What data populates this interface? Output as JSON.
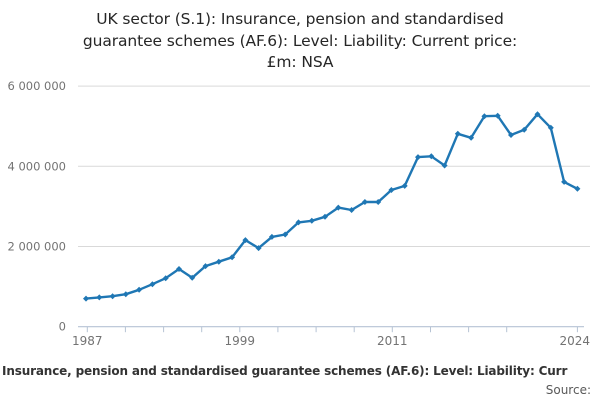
{
  "title": {
    "lines": [
      "UK sector (S.1): Insurance, pension and standardised",
      "guarantee schemes (AF.6): Level: Liability: Current price:",
      "£m: NSA"
    ]
  },
  "caption": "Insurance, pension and standardised guarantee schemes (AF.6): Level: Liability: Curr",
  "source_label": "Source:",
  "colors": {
    "line": "#1f77b4",
    "grid": "#d9d9d9",
    "axis": "#b6c3d4",
    "tick_label": "#737373",
    "title": "#262626",
    "caption": "#333333"
  },
  "chart_data": {
    "type": "line",
    "title": "UK sector (S.1): Insurance, pension and standardised guarantee schemes (AF.6): Level: Liability: Current price: £m: NSA",
    "xlabel": "",
    "ylabel": "",
    "ylim": [
      0,
      6000000
    ],
    "yticks": [
      0,
      2000000,
      4000000,
      6000000
    ],
    "ytick_labels": [
      "0",
      "2 000 000",
      "4 000 000",
      "6 000 000"
    ],
    "xtick_labeled_years": [
      1987,
      1999,
      2011,
      2024
    ],
    "xtick_minor_step_years": 3,
    "grid": "horizontal",
    "legend_position": "none",
    "marker": "diamond",
    "x": [
      1987,
      1988,
      1989,
      1990,
      1991,
      1992,
      1993,
      1994,
      1995,
      1996,
      1997,
      1998,
      1999,
      2000,
      2001,
      2002,
      2003,
      2004,
      2005,
      2006,
      2007,
      2008,
      2009,
      2010,
      2011,
      2012,
      2013,
      2014,
      2015,
      2016,
      2017,
      2018,
      2019,
      2020,
      2021,
      2022,
      2023,
      2024
    ],
    "values": [
      700000,
      730000,
      760000,
      810000,
      920000,
      1060000,
      1210000,
      1440000,
      1220000,
      1510000,
      1620000,
      1730000,
      2160000,
      1960000,
      2240000,
      2300000,
      2600000,
      2640000,
      2740000,
      2970000,
      2910000,
      3110000,
      3110000,
      3410000,
      3510000,
      4230000,
      4250000,
      4020000,
      4810000,
      4710000,
      5250000,
      5260000,
      4780000,
      4910000,
      5300000,
      4960000,
      3610000,
      3440000
    ]
  }
}
